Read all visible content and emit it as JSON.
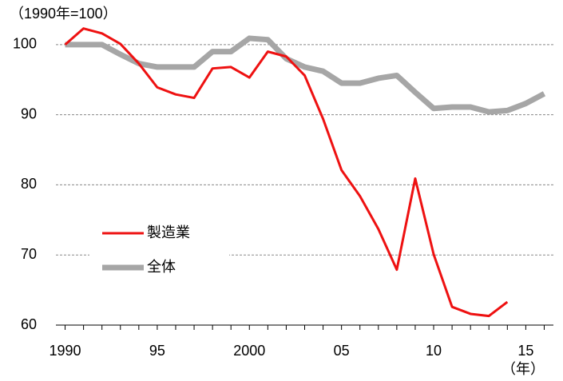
{
  "chart_data": {
    "type": "line",
    "y_unit_label": "（1990年=100）",
    "x_unit_label": "（年）",
    "x": [
      1990,
      1991,
      1992,
      1993,
      1994,
      1995,
      1996,
      1997,
      1998,
      1999,
      2000,
      2001,
      2002,
      2003,
      2004,
      2005,
      2006,
      2007,
      2008,
      2009,
      2010,
      2011,
      2012,
      2013,
      2014,
      2015,
      2016
    ],
    "series": [
      {
        "name": "製造業",
        "color": "#ee1111",
        "width": 3,
        "values": [
          100,
          102.3,
          101.6,
          100.1,
          97.3,
          93.9,
          92.9,
          92.4,
          96.6,
          96.8,
          95.3,
          99,
          98.3,
          95.6,
          89.4,
          82.1,
          78.4,
          73.7,
          67.9,
          80.9,
          70.1,
          62.6,
          61.6,
          61.3,
          63.3,
          null,
          null
        ]
      },
      {
        "name": "全体",
        "color": "#a6a6a6",
        "width": 7,
        "values": [
          100,
          100,
          100,
          98.6,
          97.3,
          96.8,
          96.8,
          96.8,
          99,
          99,
          100.9,
          100.7,
          98,
          96.8,
          96.2,
          94.5,
          94.5,
          95.2,
          95.6,
          93.2,
          90.9,
          91.1,
          91.1,
          90.4,
          90.6,
          91.6,
          93
        ]
      }
    ],
    "xlim": [
      1989.5,
      2016.5
    ],
    "ylim": [
      60,
      103
    ],
    "xticks": [
      1990,
      {
        "value": 1995,
        "label": "95"
      },
      2000,
      {
        "value": 2005,
        "label": "05"
      },
      {
        "value": 2010,
        "label": "10"
      },
      {
        "value": 2015,
        "label": "15"
      }
    ],
    "yticks": [
      60,
      70,
      80,
      90,
      100
    ],
    "grid": true
  }
}
